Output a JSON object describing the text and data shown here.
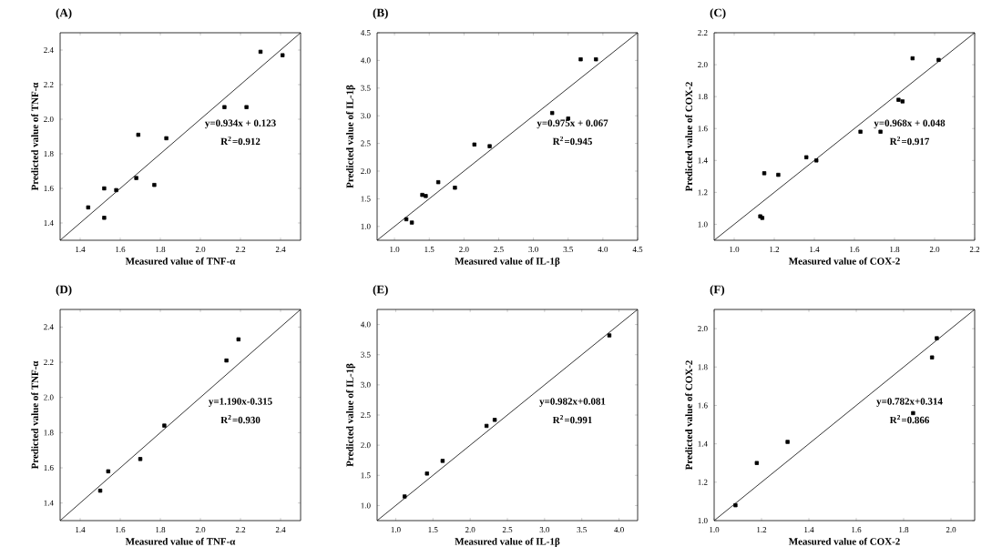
{
  "chart_data": [
    {
      "type": "scatter",
      "title": "(A)",
      "xlabel": "Measured value of TNF-α",
      "ylabel": "Predicted value of TNF-α",
      "xlim": [
        1.3,
        2.5
      ],
      "ylim": [
        1.3,
        2.5
      ],
      "xticks": [
        1.4,
        1.6,
        1.8,
        {
          "value": 2.0,
          "label": "2.0"
        },
        2.2,
        2.4
      ],
      "yticks": [
        1.4,
        1.6,
        1.8,
        {
          "value": 2.0,
          "label": "2.0"
        },
        2.2,
        2.4
      ],
      "annotations": [
        "y=0.934x + 0.123",
        "R$^{2}$=0.912"
      ],
      "series": [
        {
          "type": "scatter",
          "marker": "square",
          "color": "#000000",
          "x": [
            1.44,
            1.52,
            1.52,
            1.58,
            1.68,
            1.69,
            1.77,
            1.83,
            2.12,
            2.23,
            2.3,
            2.41
          ],
          "values": [
            1.49,
            1.6,
            1.43,
            1.59,
            1.66,
            1.91,
            1.62,
            1.89,
            2.07,
            2.07,
            2.39,
            2.37
          ]
        },
        {
          "type": "line",
          "color": "#000000",
          "x": [
            1.3,
            2.5
          ],
          "values": [
            1.3,
            2.5
          ]
        }
      ]
    },
    {
      "type": "scatter",
      "title": "(B)",
      "xlabel": "Measured value of IL-1β",
      "ylabel": "Predicted value of IL-1β",
      "xlim": [
        0.75,
        4.5
      ],
      "ylim": [
        0.75,
        4.5
      ],
      "xticks": [
        {
          "value": 1.0,
          "label": "1.0"
        },
        1.5,
        {
          "value": 2.0,
          "label": "2.0"
        },
        2.5,
        {
          "value": 3.0,
          "label": "3.0"
        },
        3.5,
        {
          "value": 4.0,
          "label": "4.0"
        },
        4.5
      ],
      "yticks": [
        {
          "value": 1.0,
          "label": "1.0"
        },
        1.5,
        {
          "value": 2.0,
          "label": "2.0"
        },
        2.5,
        {
          "value": 3.0,
          "label": "3.0"
        },
        3.5,
        {
          "value": 4.0,
          "label": "4.0"
        },
        4.5
      ],
      "annotations": [
        "y=0.975x + 0.067",
        "R$^{2}$=0.945"
      ],
      "series": [
        {
          "type": "scatter",
          "marker": "square",
          "color": "#000000",
          "x": [
            1.17,
            1.25,
            1.4,
            1.45,
            1.63,
            1.87,
            2.15,
            2.37,
            3.27,
            3.5,
            3.68,
            3.9
          ],
          "values": [
            1.13,
            1.07,
            1.57,
            1.55,
            1.8,
            1.7,
            2.48,
            2.45,
            3.05,
            2.95,
            4.02,
            4.02
          ]
        },
        {
          "type": "line",
          "color": "#000000",
          "x": [
            0.75,
            4.5
          ],
          "values": [
            0.75,
            4.5
          ]
        }
      ]
    },
    {
      "type": "scatter",
      "title": "(C)",
      "xlabel": "Measured value of COX-2",
      "ylabel": "Predicted value of COX-2",
      "xlim": [
        0.9,
        2.2
      ],
      "ylim": [
        0.9,
        2.2
      ],
      "xticks": [
        {
          "value": 1.0,
          "label": "1.0"
        },
        1.2,
        1.4,
        1.6,
        1.8,
        {
          "value": 2.0,
          "label": "2.0"
        },
        2.2
      ],
      "yticks": [
        {
          "value": 1.0,
          "label": "1.0"
        },
        1.2,
        1.4,
        1.6,
        1.8,
        {
          "value": 2.0,
          "label": "2.0"
        },
        2.2
      ],
      "annotations": [
        "y=0.968x + 0.048",
        "R$^{2}$=0.917"
      ],
      "series": [
        {
          "type": "scatter",
          "marker": "square",
          "color": "#000000",
          "x": [
            1.13,
            1.14,
            1.15,
            1.22,
            1.36,
            1.41,
            1.63,
            1.73,
            1.82,
            1.84,
            1.89,
            2.02
          ],
          "values": [
            1.05,
            1.04,
            1.32,
            1.31,
            1.42,
            1.4,
            1.58,
            1.58,
            1.78,
            1.77,
            2.04,
            2.03
          ]
        },
        {
          "type": "line",
          "color": "#000000",
          "x": [
            0.9,
            2.2
          ],
          "values": [
            0.9,
            2.2
          ]
        }
      ]
    },
    {
      "type": "scatter",
      "title": "(D)",
      "xlabel": "Measured value of TNF-α",
      "ylabel": "Predicted value of TNF-α",
      "xlim": [
        1.3,
        2.5
      ],
      "ylim": [
        1.3,
        2.5
      ],
      "xticks": [
        1.4,
        1.6,
        1.8,
        {
          "value": 2.0,
          "label": "2.0"
        },
        2.2,
        2.4
      ],
      "yticks": [
        1.4,
        1.6,
        1.8,
        {
          "value": 2.0,
          "label": "2.0"
        },
        2.2,
        2.4
      ],
      "annotations": [
        "y=1.190x-0.315",
        "R$^{2}$=0.930"
      ],
      "series": [
        {
          "type": "scatter",
          "marker": "square",
          "color": "#000000",
          "x": [
            1.5,
            1.54,
            1.7,
            1.82,
            2.13,
            2.19
          ],
          "values": [
            1.47,
            1.58,
            1.65,
            1.84,
            2.21,
            2.33
          ]
        },
        {
          "type": "line",
          "color": "#000000",
          "x": [
            1.3,
            2.5
          ],
          "values": [
            1.3,
            2.5
          ]
        }
      ]
    },
    {
      "type": "scatter",
      "title": "(E)",
      "xlabel": "Measured value of IL-1β",
      "ylabel": "Predicted value of IL-1β",
      "xlim": [
        0.75,
        4.25
      ],
      "ylim": [
        0.75,
        4.25
      ],
      "xticks": [
        {
          "value": 1.0,
          "label": "1.0"
        },
        1.5,
        {
          "value": 2.0,
          "label": "2.0"
        },
        2.5,
        {
          "value": 3.0,
          "label": "3.0"
        },
        3.5,
        {
          "value": 4.0,
          "label": "4.0"
        }
      ],
      "yticks": [
        {
          "value": 1.0,
          "label": "1.0"
        },
        1.5,
        {
          "value": 2.0,
          "label": "2.0"
        },
        2.5,
        {
          "value": 3.0,
          "label": "3.0"
        },
        3.5,
        {
          "value": 4.0,
          "label": "4.0"
        }
      ],
      "annotations": [
        "y=0.982x+0.081",
        "R$^{2}$=0.991"
      ],
      "series": [
        {
          "type": "scatter",
          "marker": "square",
          "color": "#000000",
          "x": [
            1.12,
            1.42,
            1.63,
            2.22,
            2.33,
            3.87
          ],
          "values": [
            1.15,
            1.53,
            1.74,
            2.32,
            2.42,
            3.82
          ]
        },
        {
          "type": "line",
          "color": "#000000",
          "x": [
            0.75,
            4.25
          ],
          "values": [
            0.75,
            4.25
          ]
        }
      ]
    },
    {
      "type": "scatter",
      "title": "(F)",
      "xlabel": "Measured value of COX-2",
      "ylabel": "Predicted value of COX-2",
      "xlim": [
        1.0,
        2.1
      ],
      "ylim": [
        1.0,
        2.1
      ],
      "xticks": [
        {
          "value": 1.0,
          "label": "1.0"
        },
        1.2,
        1.4,
        1.6,
        1.8,
        {
          "value": 2.0,
          "label": "2.0"
        }
      ],
      "yticks": [
        {
          "value": 1.0,
          "label": "1.0"
        },
        1.2,
        1.4,
        1.6,
        1.8,
        {
          "value": 2.0,
          "label": "2.0"
        }
      ],
      "annotations": [
        "y=0.782x+0.314",
        "R$^{2}$=0.866"
      ],
      "series": [
        {
          "type": "scatter",
          "marker": "square",
          "color": "#000000",
          "x": [
            1.09,
            1.18,
            1.31,
            1.84,
            1.92,
            1.94
          ],
          "values": [
            1.08,
            1.3,
            1.41,
            1.56,
            1.85,
            1.95
          ]
        },
        {
          "type": "line",
          "color": "#000000",
          "x": [
            1.0,
            2.1
          ],
          "values": [
            1.0,
            2.1
          ]
        }
      ]
    }
  ]
}
